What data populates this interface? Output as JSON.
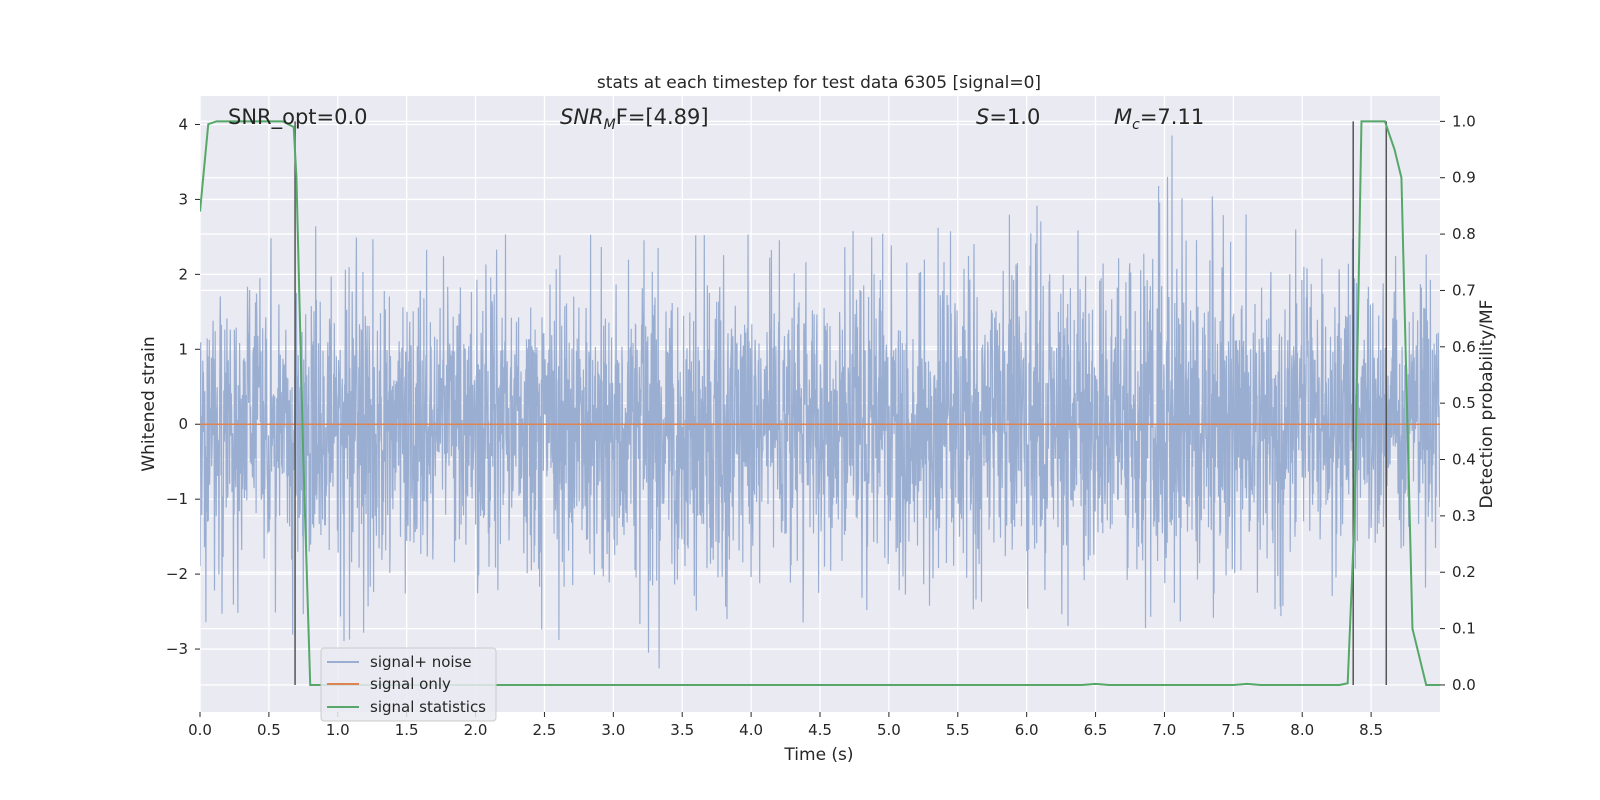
{
  "chart_data": {
    "type": "line",
    "title": "stats at each timestep for test data 6305 [signal=0]",
    "xlabel": "Time (s)",
    "ylabel": "Whitened strain",
    "y2label": "Detection probability/MF",
    "xlim": [
      0.0,
      9.0
    ],
    "ylim": [
      -3.84,
      4.38
    ],
    "y2lim": [
      -0.048,
      1.045
    ],
    "x_ticks": [
      "0.0",
      "0.5",
      "1.0",
      "1.5",
      "2.0",
      "2.5",
      "3.0",
      "3.5",
      "4.0",
      "4.5",
      "5.0",
      "5.5",
      "6.0",
      "6.5",
      "7.0",
      "7.5",
      "8.0",
      "8.5"
    ],
    "y_ticks": [
      "4",
      "3",
      "2",
      "1",
      "0",
      "−1",
      "−2",
      "−3"
    ],
    "y2_ticks": [
      "1.0",
      "0.9",
      "0.8",
      "0.7",
      "0.6",
      "0.5",
      "0.4",
      "0.3",
      "0.2",
      "0.1",
      "0.0"
    ],
    "grid": true,
    "legend_position": "lower-left",
    "annotations": {
      "snr_opt": "SNR_opt=0.0",
      "snr_mf_main": "SNR",
      "snr_mf_sub": "M",
      "snr_mf_rest": "F=[4.89]",
      "s_main": "S",
      "s_rest": "=1.0",
      "mc_main": "M",
      "mc_sub": "c",
      "mc_rest": "=7.11"
    },
    "vertical_lines_x": [
      0.69,
      8.37,
      8.61
    ],
    "series": [
      {
        "name": "signal+ noise",
        "color": "#9aaed2",
        "description_type": "noise",
        "envelope": {
          "x": [
            0.0,
            0.5,
            1.0,
            1.5,
            2.0,
            2.5,
            3.0,
            3.5,
            4.0,
            4.5,
            5.0,
            5.5,
            6.0,
            6.5,
            7.0,
            7.5,
            8.0,
            8.5,
            9.0
          ],
          "upper": [
            2.4,
            2.9,
            2.8,
            2.7,
            2.6,
            2.8,
            2.6,
            2.5,
            2.7,
            2.6,
            2.7,
            3.0,
            3.2,
            2.9,
            4.0,
            2.8,
            2.9,
            2.6,
            2.5
          ],
          "lower": [
            -2.8,
            -2.8,
            -3.0,
            -2.6,
            -3.0,
            -2.9,
            -2.8,
            -3.5,
            -2.6,
            -2.7,
            -2.5,
            -2.9,
            -2.7,
            -2.8,
            -2.7,
            -2.9,
            -2.7,
            -2.4,
            -2.3
          ]
        }
      },
      {
        "name": "signal only",
        "color": "#dd8452",
        "x": [
          0.0,
          9.0
        ],
        "y": [
          0.0,
          0.0
        ]
      },
      {
        "name": "signal statistics",
        "color": "#55a868",
        "axis": "right",
        "x": [
          0.0,
          0.06,
          0.12,
          0.2,
          0.4,
          0.6,
          0.68,
          0.7,
          0.75,
          0.8,
          1.0,
          3.0,
          6.4,
          6.5,
          6.6,
          7.5,
          7.6,
          7.7,
          8.0,
          8.27,
          8.33,
          8.38,
          8.43,
          8.5,
          8.6,
          8.67,
          8.72,
          8.8,
          8.9,
          9.0
        ],
        "y": [
          0.84,
          0.995,
          1.0,
          1.0,
          1.0,
          1.0,
          0.99,
          0.9,
          0.4,
          0.0,
          0.0,
          0.0,
          0.0,
          0.002,
          0.0,
          0.0,
          0.002,
          0.0,
          0.0,
          0.0,
          0.003,
          0.3,
          1.0,
          1.0,
          1.0,
          0.95,
          0.9,
          0.1,
          0.0,
          0.0
        ]
      }
    ]
  }
}
